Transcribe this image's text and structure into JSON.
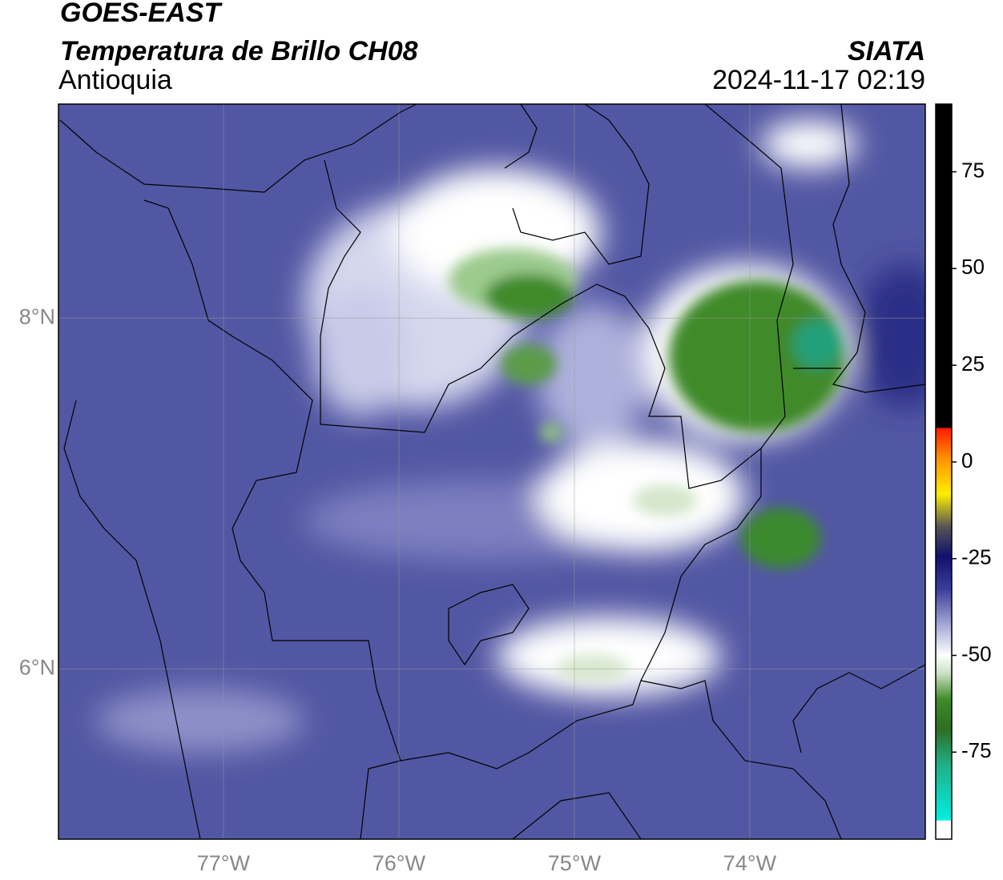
{
  "header": {
    "title": "GOES-EAST",
    "subtitle": "Temperatura de Brillo CH08",
    "region": "Antioquia",
    "source": "SIATA",
    "datetime": "2024-11-17 02:19"
  },
  "map": {
    "xlim": [
      -77.94,
      -73.0
    ],
    "ylim": [
      5.03,
      9.22
    ],
    "xticks": [
      {
        "value": -77,
        "label": "77°W"
      },
      {
        "value": -76,
        "label": "76°W"
      },
      {
        "value": -75,
        "label": "75°W"
      },
      {
        "value": -74,
        "label": "74°W"
      }
    ],
    "yticks": [
      {
        "value": 6,
        "label": "6°N"
      },
      {
        "value": 8,
        "label": "8°N"
      }
    ],
    "grid": true
  },
  "colorbar": {
    "lim": [
      -97.5,
      92.5
    ],
    "ticks": [
      75,
      50,
      25,
      0,
      -25,
      -50,
      -75
    ]
  }
}
